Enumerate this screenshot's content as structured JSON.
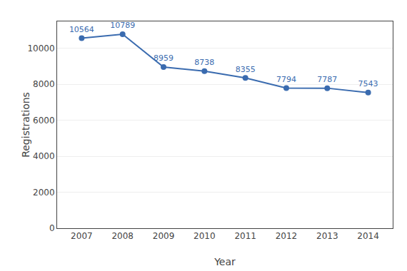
{
  "chart_data": {
    "type": "line",
    "x": [
      2007,
      2008,
      2009,
      2010,
      2011,
      2012,
      2013,
      2014
    ],
    "values": [
      10564,
      10789,
      8959,
      8738,
      8355,
      7794,
      7787,
      7543
    ],
    "color": "#3A6BAF",
    "marker": "circle",
    "xlabel": "Year",
    "ylabel": "Registrations",
    "xlim": [
      2006.4,
      2014.6
    ],
    "xticks": [
      2007,
      2008,
      2009,
      2010,
      2011,
      2012,
      2013,
      2014
    ],
    "ylim": [
      0,
      11500
    ],
    "yticks": [
      0,
      2000,
      4000,
      6000,
      8000,
      10000
    ],
    "grid": "y",
    "data_labels": true
  }
}
